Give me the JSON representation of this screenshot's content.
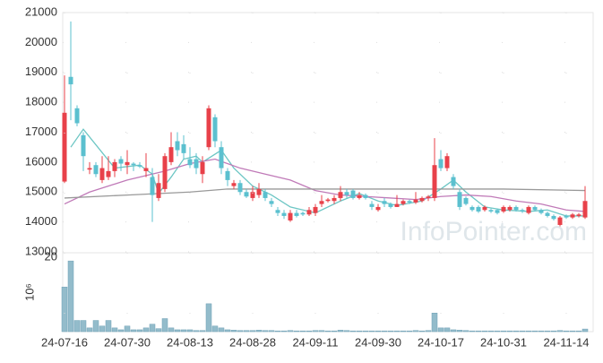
{
  "chart_data": [
    {
      "type": "candlestick",
      "up_color": "#e8414a",
      "down_color": "#5bc0cf",
      "open": [
        15350,
        18850,
        17800,
        16900,
        15750,
        15900,
        15400,
        15500,
        15700,
        16100,
        15900,
        15950,
        15900,
        15700,
        15500,
        14800,
        15100,
        16000,
        16700,
        16600,
        16100,
        16100,
        15600,
        16500,
        17500,
        16500,
        15700,
        15200,
        15300,
        15000,
        14800,
        14900,
        15000,
        14700,
        14400,
        14300,
        14050,
        14300,
        14300,
        14250,
        14300,
        14600,
        14700,
        14700,
        14800,
        15000,
        15050,
        14800,
        14900,
        14600,
        14400,
        14700,
        14600,
        14500,
        14600,
        14700,
        14650,
        14700,
        14800,
        14800,
        16100,
        15800,
        15500,
        15000,
        14800,
        14500,
        14500,
        14400,
        14400,
        14400,
        14350,
        14400,
        14500,
        14400,
        14300,
        14500,
        14400,
        14300,
        14200,
        13900,
        14200,
        14150,
        14200,
        14150
      ],
      "high": [
        18900,
        20700,
        17900,
        17000,
        16000,
        16000,
        16200,
        16200,
        16100,
        16200,
        16400,
        16000,
        16000,
        16300,
        15800,
        15600,
        16300,
        17000,
        17000,
        16900,
        16500,
        16300,
        16200,
        17900,
        17600,
        16700,
        15800,
        15400,
        15400,
        15100,
        15200,
        15300,
        15100,
        14800,
        14500,
        14400,
        14400,
        14400,
        14350,
        14500,
        14600,
        14900,
        14800,
        14900,
        15200,
        15100,
        15100,
        15000,
        14950,
        14700,
        14600,
        14800,
        14650,
        14900,
        14750,
        14750,
        15000,
        14850,
        14900,
        16800,
        16400,
        16300,
        15600,
        15100,
        14850,
        14550,
        14550,
        14550,
        14450,
        14450,
        14550,
        14550,
        14550,
        14450,
        14550,
        14550,
        14450,
        14350,
        14250,
        14200,
        14250,
        14300,
        14300,
        15200
      ],
      "low": [
        15300,
        17400,
        17200,
        15700,
        15600,
        15500,
        15300,
        15400,
        15500,
        15700,
        15600,
        15700,
        15800,
        15500,
        14000,
        14700,
        15000,
        15900,
        16200,
        16100,
        15800,
        15600,
        15300,
        16400,
        16500,
        15600,
        15200,
        15100,
        14900,
        14800,
        14700,
        14800,
        14700,
        14500,
        14200,
        14100,
        14000,
        14150,
        14200,
        14200,
        14200,
        14500,
        14650,
        14600,
        14700,
        14800,
        14750,
        14750,
        14750,
        14400,
        14350,
        14500,
        14450,
        14500,
        14550,
        14600,
        14600,
        14650,
        14700,
        14700,
        15700,
        15700,
        15100,
        14400,
        14550,
        14350,
        14300,
        14350,
        14300,
        14250,
        14300,
        14350,
        14350,
        14300,
        14250,
        14350,
        14250,
        14150,
        14050,
        13850,
        14100,
        14100,
        14150,
        14100
      ],
      "close": [
        17650,
        18600,
        17300,
        16200,
        15800,
        15600,
        15800,
        15700,
        16000,
        15950,
        16000,
        15900,
        15850,
        15800,
        14900,
        15300,
        16200,
        16500,
        16400,
        16300,
        15900,
        15800,
        16000,
        17800,
        16700,
        15800,
        15400,
        15300,
        15000,
        14850,
        15000,
        15100,
        14800,
        14600,
        14300,
        14200,
        14300,
        14200,
        14250,
        14400,
        14500,
        14700,
        14750,
        14800,
        15000,
        14900,
        14800,
        14900,
        14800,
        14500,
        14500,
        14600,
        14500,
        14600,
        14700,
        14650,
        14750,
        14800,
        14850,
        15900,
        15800,
        16200,
        15200,
        14500,
        14600,
        14400,
        14350,
        14500,
        14350,
        14300,
        14500,
        14500,
        14400,
        14350,
        14500,
        14400,
        14300,
        14200,
        14100,
        14150,
        14150,
        14250,
        14250,
        14700
      ],
      "series": [
        {
          "color": "#6cc6c4",
          "x": [
            1,
            3,
            8,
            12,
            14,
            15,
            17,
            19,
            21,
            22,
            25,
            27,
            30,
            33,
            36,
            40,
            44,
            47,
            50,
            53,
            57,
            60,
            62,
            64,
            67,
            70,
            74,
            77,
            80,
            83
          ],
          "values": [
            16500,
            17100,
            15800,
            15900,
            15600,
            14950,
            15500,
            16100,
            16200,
            16000,
            16400,
            15800,
            15200,
            14900,
            14500,
            14300,
            14700,
            14950,
            14700,
            14550,
            14700,
            15100,
            15400,
            15000,
            14500,
            14400,
            14350,
            14400,
            14200,
            14200
          ]
        },
        {
          "color": "#c07ab8",
          "x": [
            0,
            4,
            10,
            16,
            20,
            24,
            28,
            32,
            36,
            40,
            44,
            48,
            52,
            56,
            60,
            64,
            68,
            72,
            76,
            80,
            83
          ],
          "values": [
            14600,
            15000,
            15400,
            15700,
            15950,
            16100,
            15800,
            15600,
            15400,
            15050,
            14900,
            14850,
            14800,
            14750,
            14850,
            14900,
            14850,
            14700,
            14600,
            14400,
            14350
          ]
        },
        {
          "color": "#999999",
          "x": [
            0,
            10,
            20,
            26,
            40,
            60,
            70,
            83
          ],
          "values": [
            14800,
            14900,
            15000,
            15100,
            15100,
            15100,
            15100,
            15050
          ]
        }
      ],
      "ylim": [
        13000,
        21000
      ],
      "yticks": [
        13000,
        14000,
        15000,
        16000,
        17000,
        18000,
        19000,
        20000,
        21000
      ],
      "watermark": "InfoPointer.com"
    },
    {
      "type": "bar",
      "color": "#93bccb",
      "y_label": "10⁶",
      "categories": [
        "24-07-16",
        null,
        null,
        null,
        null,
        null,
        null,
        null,
        null,
        null,
        "24-07-30",
        null,
        null,
        null,
        null,
        null,
        null,
        null,
        null,
        null,
        "24-08-13",
        null,
        null,
        null,
        null,
        null,
        null,
        null,
        null,
        null,
        "24-08-28",
        null,
        null,
        null,
        null,
        null,
        null,
        null,
        null,
        null,
        "24-09-11",
        null,
        null,
        null,
        null,
        null,
        null,
        null,
        null,
        null,
        "24-09-30",
        null,
        null,
        null,
        null,
        null,
        null,
        null,
        null,
        null,
        "24-10-17",
        null,
        null,
        null,
        null,
        null,
        null,
        null,
        null,
        null,
        "24-10-31",
        null,
        null,
        null,
        null,
        null,
        null,
        null,
        null,
        null,
        "24-11-14",
        null,
        null,
        null
      ],
      "values": [
        12,
        19,
        3,
        3,
        1,
        3,
        1.5,
        3,
        1,
        0.5,
        1.5,
        0.5,
        0.5,
        1,
        2,
        0.8,
        3.5,
        1,
        0.5,
        0.5,
        0.5,
        0.3,
        0.3,
        7.5,
        1.5,
        1,
        0.5,
        0.4,
        0.3,
        0.3,
        0.3,
        0.4,
        0.3,
        0.3,
        0.2,
        0.2,
        0.3,
        0.2,
        0.2,
        0.2,
        0.3,
        0.3,
        0.2,
        0.2,
        0.4,
        0.3,
        0.2,
        0.2,
        0.2,
        0.2,
        0.2,
        0.2,
        0.2,
        0.2,
        0.2,
        0.2,
        0.3,
        0.2,
        0.3,
        5,
        1,
        1,
        0.5,
        0.4,
        0.3,
        0.2,
        0.2,
        0.2,
        0.2,
        0.2,
        0.2,
        0.2,
        0.2,
        0.2,
        0.2,
        0.2,
        0.2,
        0.2,
        0.2,
        0.3,
        0.2,
        0.2,
        0.2,
        0.7
      ],
      "ylim": [
        0,
        20
      ],
      "yticks": [
        20
      ]
    }
  ]
}
